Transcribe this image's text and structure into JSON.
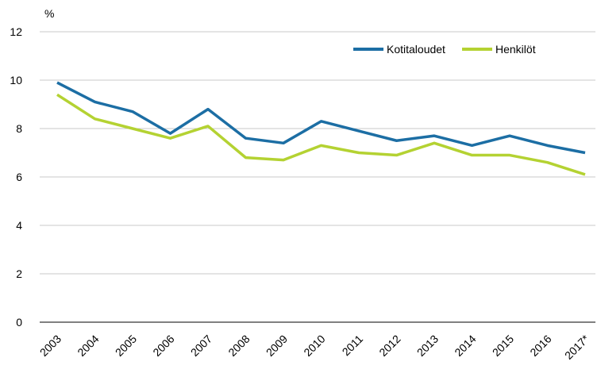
{
  "chart_data": {
    "type": "line",
    "y_label": "%",
    "categories": [
      "2003",
      "2004",
      "2005",
      "2006",
      "2007",
      "2008",
      "2009",
      "2010",
      "2011",
      "2012",
      "2013",
      "2014",
      "2015",
      "2016",
      "2017*"
    ],
    "series": [
      {
        "name": "Kotitaloudet",
        "color": "#1c6ea4",
        "values": [
          9.9,
          9.1,
          8.7,
          7.8,
          8.8,
          7.6,
          7.4,
          8.3,
          7.9,
          7.5,
          7.7,
          7.3,
          7.7,
          7.3,
          7.0
        ]
      },
      {
        "name": "Henkilöt",
        "color": "#b4d232",
        "values": [
          9.4,
          8.4,
          8.0,
          7.6,
          8.1,
          6.8,
          6.7,
          7.3,
          7.0,
          6.9,
          7.4,
          6.9,
          6.9,
          6.6,
          6.1
        ]
      }
    ],
    "ylim": [
      0,
      12
    ],
    "yticks": [
      0,
      2,
      4,
      6,
      8,
      10,
      12
    ],
    "grid": true,
    "legend": "top-right"
  }
}
